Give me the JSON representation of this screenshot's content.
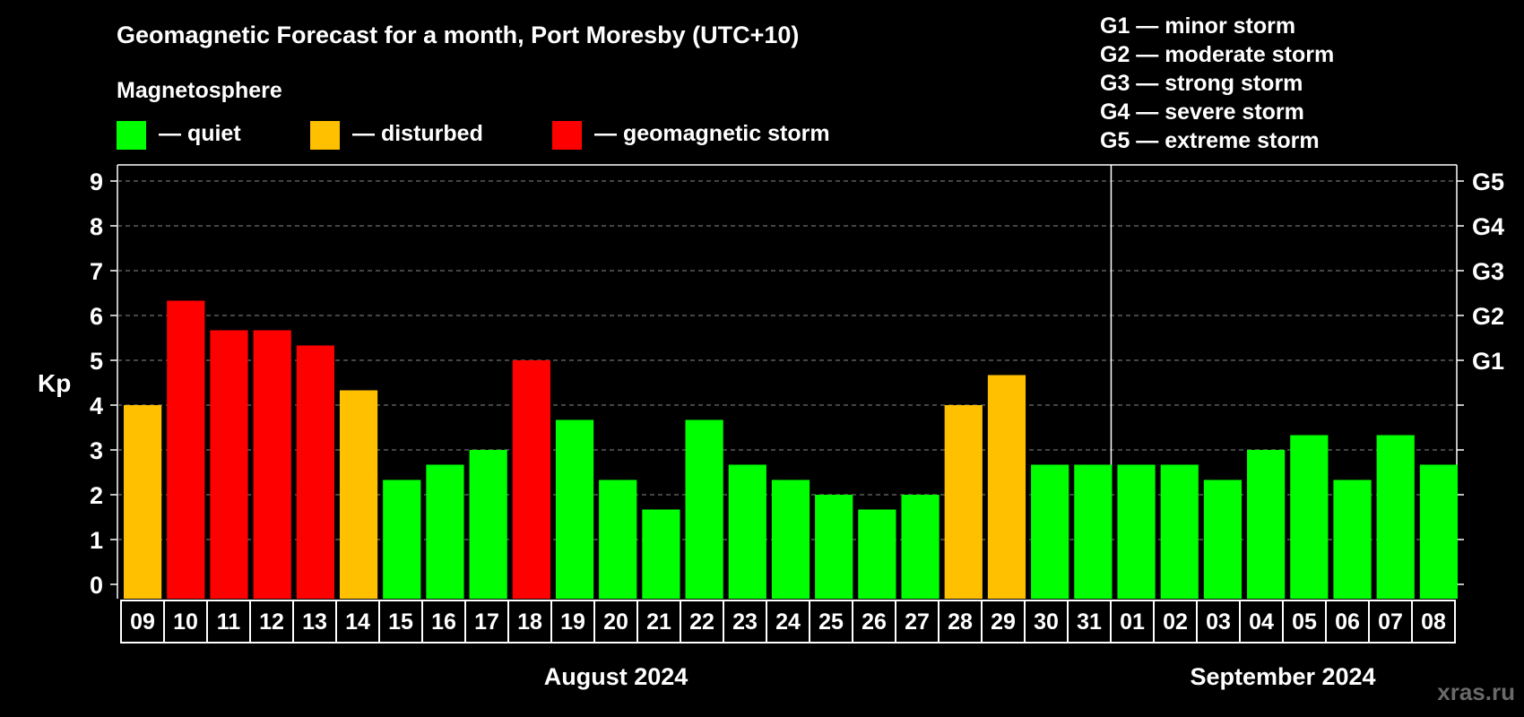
{
  "chart_data": {
    "type": "bar",
    "title": "Geomagnetic Forecast for a month, Port Moresby (UTC+10)",
    "subtitle": "Magnetosphere",
    "ylabel": "Kp",
    "ylim": [
      0,
      9
    ],
    "yticks": [
      "0",
      "1",
      "2",
      "3",
      "4",
      "5",
      "6",
      "7",
      "8",
      "9"
    ],
    "right_ticks": [
      {
        "kp": 5,
        "label": "G1"
      },
      {
        "kp": 6,
        "label": "G2"
      },
      {
        "kp": 7,
        "label": "G3"
      },
      {
        "kp": 8,
        "label": "G4"
      },
      {
        "kp": 9,
        "label": "G5"
      }
    ],
    "categories": [
      "09",
      "10",
      "11",
      "12",
      "13",
      "14",
      "15",
      "16",
      "17",
      "18",
      "19",
      "20",
      "21",
      "22",
      "23",
      "24",
      "25",
      "26",
      "27",
      "28",
      "29",
      "30",
      "31",
      "01",
      "02",
      "03",
      "04",
      "05",
      "06",
      "07",
      "08"
    ],
    "values": [
      4,
      6.33,
      5.67,
      5.67,
      5.33,
      4.33,
      2.33,
      2.67,
      3,
      5,
      3.67,
      2.33,
      1.67,
      3.67,
      2.67,
      2.33,
      2,
      1.67,
      2,
      4,
      4.67,
      2.67,
      2.67,
      2.67,
      2.67,
      2.33,
      3,
      3.33,
      2.33,
      3.33,
      2.67
    ],
    "months": [
      {
        "label": "August 2024",
        "days": 23
      },
      {
        "label": "September 2024",
        "days": 8
      }
    ],
    "legend": [
      {
        "label": "— quiet",
        "color": "#00ff00"
      },
      {
        "label": "— disturbed",
        "color": "#ffc000"
      },
      {
        "label": "— geomagnetic storm",
        "color": "#ff0000"
      }
    ],
    "storm_scale": [
      "G1 — minor storm",
      "G2 — moderate storm",
      "G3 — strong storm",
      "G4 — severe storm",
      "G5 — extreme storm"
    ],
    "grid": true,
    "watermark": "xras.ru"
  }
}
